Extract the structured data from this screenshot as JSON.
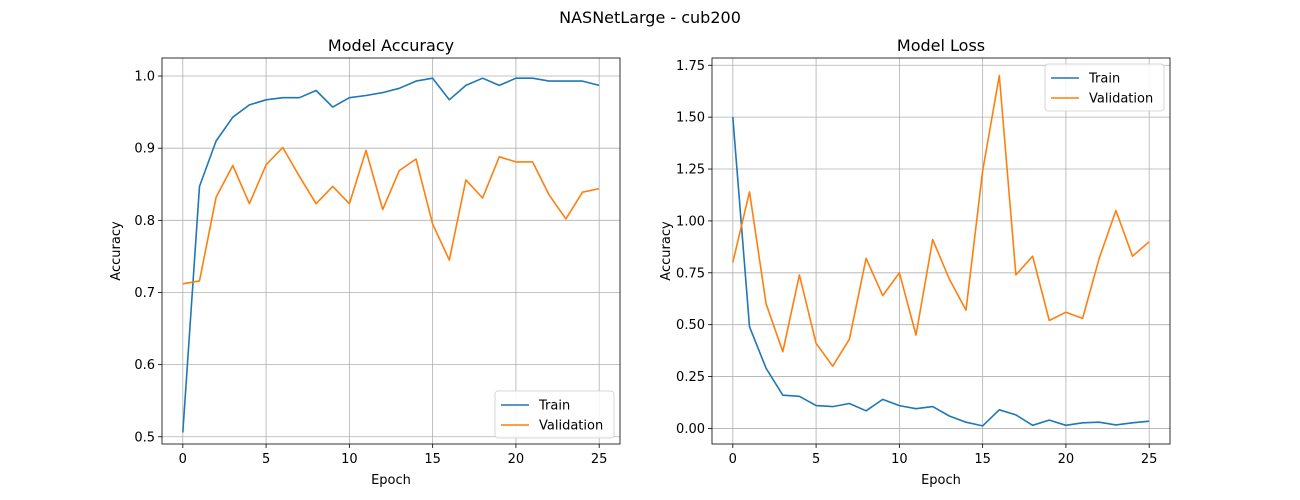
{
  "figure": {
    "suptitle": "NASNetLarge - cub200"
  },
  "colors": {
    "train": "#1f77b4",
    "validation": "#ff7f0e",
    "grid": "#b0b0b0"
  },
  "chart_data": [
    {
      "type": "line",
      "title": "Model Accuracy",
      "xlabel": "Epoch",
      "ylabel": "Accuracy",
      "xlim": [
        -1.25,
        26.25
      ],
      "ylim": [
        0.49,
        1.025
      ],
      "xticks": [
        0,
        5,
        10,
        15,
        20,
        25
      ],
      "yticks": [
        0.5,
        0.6,
        0.7,
        0.8,
        0.9,
        1.0
      ],
      "ytick_labels": [
        "0.5",
        "0.6",
        "0.7",
        "0.8",
        "0.9",
        "1.0"
      ],
      "grid": true,
      "legend": "lower right",
      "x": [
        0,
        1,
        2,
        3,
        4,
        5,
        6,
        7,
        8,
        9,
        10,
        11,
        12,
        13,
        14,
        15,
        16,
        17,
        18,
        19,
        20,
        21,
        22,
        23,
        24,
        25
      ],
      "series": [
        {
          "name": "Train",
          "color": "#1f77b4",
          "values": [
            0.506,
            0.847,
            0.91,
            0.943,
            0.96,
            0.967,
            0.97,
            0.97,
            0.98,
            0.957,
            0.97,
            0.973,
            0.977,
            0.983,
            0.993,
            0.997,
            0.967,
            0.987,
            0.997,
            0.987,
            0.997,
            0.997,
            0.993,
            0.993,
            0.993,
            0.987
          ]
        },
        {
          "name": "Validation",
          "color": "#ff7f0e",
          "values": [
            0.712,
            0.716,
            0.832,
            0.876,
            0.823,
            0.877,
            0.901,
            0.861,
            0.823,
            0.847,
            0.823,
            0.897,
            0.815,
            0.869,
            0.885,
            0.795,
            0.745,
            0.856,
            0.831,
            0.888,
            0.881,
            0.881,
            0.835,
            0.802,
            0.839,
            0.844
          ]
        }
      ]
    },
    {
      "type": "line",
      "title": "Model Loss",
      "xlabel": "Epoch",
      "ylabel": "Accuracy",
      "xlim": [
        -1.25,
        26.25
      ],
      "ylim": [
        -0.075,
        1.785
      ],
      "xticks": [
        0,
        5,
        10,
        15,
        20,
        25
      ],
      "yticks": [
        0.0,
        0.25,
        0.5,
        0.75,
        1.0,
        1.25,
        1.5,
        1.75
      ],
      "ytick_labels": [
        "0.00",
        "0.25",
        "0.50",
        "0.75",
        "1.00",
        "1.25",
        "1.50",
        "1.75"
      ],
      "grid": true,
      "legend": "upper right",
      "x": [
        0,
        1,
        2,
        3,
        4,
        5,
        6,
        7,
        8,
        9,
        10,
        11,
        12,
        13,
        14,
        15,
        16,
        17,
        18,
        19,
        20,
        21,
        22,
        23,
        24,
        25
      ],
      "series": [
        {
          "name": "Train",
          "color": "#1f77b4",
          "values": [
            1.5,
            0.49,
            0.29,
            0.16,
            0.155,
            0.11,
            0.105,
            0.12,
            0.085,
            0.14,
            0.11,
            0.095,
            0.105,
            0.06,
            0.03,
            0.012,
            0.09,
            0.065,
            0.015,
            0.04,
            0.015,
            0.027,
            0.03,
            0.017,
            0.027,
            0.035
          ]
        },
        {
          "name": "Validation",
          "color": "#ff7f0e",
          "values": [
            0.8,
            1.14,
            0.6,
            0.37,
            0.74,
            0.41,
            0.3,
            0.43,
            0.82,
            0.64,
            0.75,
            0.45,
            0.91,
            0.72,
            0.57,
            1.24,
            1.7,
            0.74,
            0.83,
            0.52,
            0.56,
            0.53,
            0.82,
            1.05,
            0.83,
            0.9
          ]
        }
      ]
    }
  ]
}
